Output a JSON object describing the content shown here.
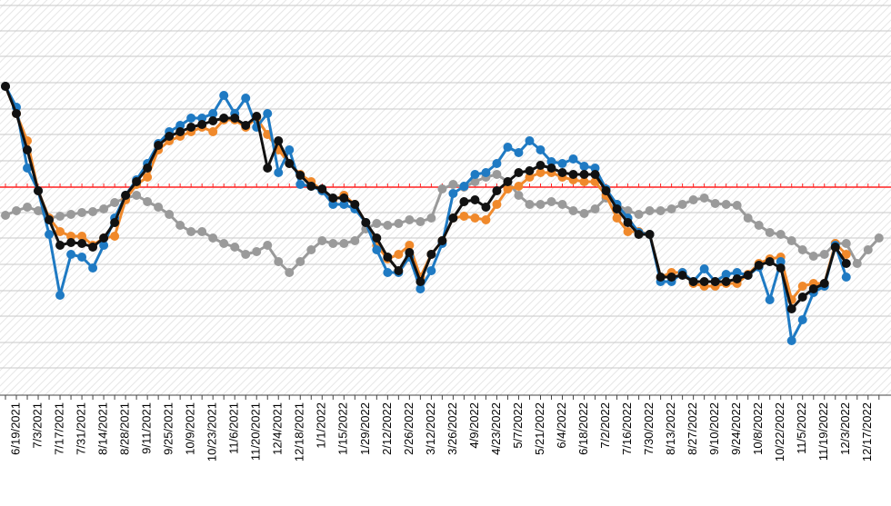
{
  "chart_data": {
    "type": "line",
    "categories": [
      null,
      "6/19/2021",
      null,
      "7/3/2021",
      null,
      "7/17/2021",
      null,
      "7/31/2021",
      null,
      "8/14/2021",
      null,
      "8/28/2021",
      null,
      "9/11/2021",
      null,
      "9/25/2021",
      null,
      "10/9/2021",
      null,
      "10/23/2021",
      null,
      "11/6/2021",
      null,
      "11/20/2021",
      null,
      "12/4/2021",
      null,
      "12/18/2021",
      null,
      "1/1/2022",
      null,
      "1/15/2022",
      null,
      "1/29/2022",
      null,
      "2/12/2022",
      null,
      "2/26/2022",
      null,
      "3/12/2022",
      null,
      "3/26/2022",
      null,
      "4/9/2022",
      null,
      "4/23/2022",
      null,
      "5/7/2022",
      null,
      "5/21/2022",
      null,
      "6/4/2022",
      null,
      "6/18/2022",
      null,
      "7/2/2022",
      null,
      "7/16/2022",
      null,
      "7/30/2022",
      null,
      "8/13/2022",
      null,
      "8/27/2022",
      null,
      "9/10/2022",
      null,
      "9/24/2022",
      null,
      "10/8/2022",
      null,
      "10/22/2022",
      null,
      "11/5/2022",
      null,
      "11/19/2022",
      null,
      "12/3/2022",
      null,
      "12/17/2022",
      null
    ],
    "series": [
      {
        "color": "#9a9a9a",
        "values": [
          198,
          203,
          207,
          203,
          195,
          197,
          199,
          201,
          202,
          205,
          212,
          217,
          220,
          213,
          207,
          199,
          187,
          180,
          180,
          173,
          167,
          163,
          155,
          158,
          165,
          147,
          135,
          147,
          160,
          170,
          167,
          167,
          170,
          183,
          189,
          187,
          189,
          193,
          191,
          195,
          227,
          232,
          229,
          235,
          240,
          243,
          235,
          220,
          210,
          210,
          213,
          210,
          203,
          200,
          205,
          217,
          210,
          203,
          199,
          203,
          203,
          205,
          210,
          215,
          217,
          211,
          210,
          209,
          195,
          187,
          179,
          177,
          170,
          160,
          153,
          155,
          167,
          167,
          145,
          160,
          173
        ]
      },
      {
        "color": "#f0892b",
        "values": [
          340,
          310,
          280,
          225,
          195,
          180,
          175,
          175,
          165,
          173,
          175,
          215,
          232,
          240,
          270,
          280,
          285,
          290,
          295,
          290,
          303,
          303,
          295,
          305,
          287,
          270,
          255,
          243,
          235,
          225,
          215,
          220,
          210,
          190,
          165,
          150,
          155,
          165,
          130,
          155,
          170,
          195,
          197,
          195,
          193,
          210,
          227,
          230,
          240,
          245,
          245,
          240,
          237,
          235,
          235,
          220,
          195,
          180,
          180,
          177,
          130,
          135,
          135,
          123,
          120,
          120,
          123,
          123,
          133,
          145,
          150,
          152,
          105,
          120,
          123,
          123,
          167,
          155,
          null,
          null,
          null
        ]
      },
      {
        "color": "#1f7ac3",
        "values": [
          340,
          317,
          250,
          225,
          177,
          110,
          155,
          152,
          140,
          165,
          195,
          220,
          237,
          255,
          277,
          290,
          297,
          305,
          305,
          310,
          330,
          310,
          327,
          295,
          310,
          245,
          270,
          232,
          230,
          225,
          210,
          210,
          205,
          190,
          160,
          135,
          135,
          152,
          117,
          137,
          167,
          222,
          230,
          243,
          245,
          255,
          273,
          267,
          280,
          270,
          257,
          255,
          260,
          252,
          250,
          227,
          210,
          195,
          179,
          177,
          125,
          125,
          135,
          125,
          139,
          125,
          133,
          135,
          132,
          141,
          105,
          147,
          60,
          83,
          113,
          120,
          165,
          130,
          null,
          null,
          null
        ]
      },
      {
        "color": "#111111",
        "values": [
          340,
          310,
          270,
          225,
          193,
          165,
          168,
          167,
          163,
          173,
          190,
          220,
          235,
          250,
          275,
          285,
          290,
          295,
          298,
          302,
          305,
          305,
          297,
          307,
          250,
          280,
          255,
          242,
          230,
          227,
          217,
          217,
          210,
          190,
          173,
          152,
          137,
          157,
          125,
          155,
          170,
          195,
          213,
          215,
          207,
          225,
          235,
          245,
          247,
          253,
          250,
          245,
          243,
          243,
          243,
          225,
          205,
          190,
          177,
          177,
          130,
          130,
          132,
          125,
          125,
          125,
          125,
          128,
          132,
          143,
          147,
          140,
          95,
          108,
          117,
          123,
          163,
          145,
          null,
          null,
          null
        ]
      }
    ],
    "ylim": [
      0,
      435
    ],
    "reference_line": 229,
    "reference_color": "#ff2020"
  }
}
